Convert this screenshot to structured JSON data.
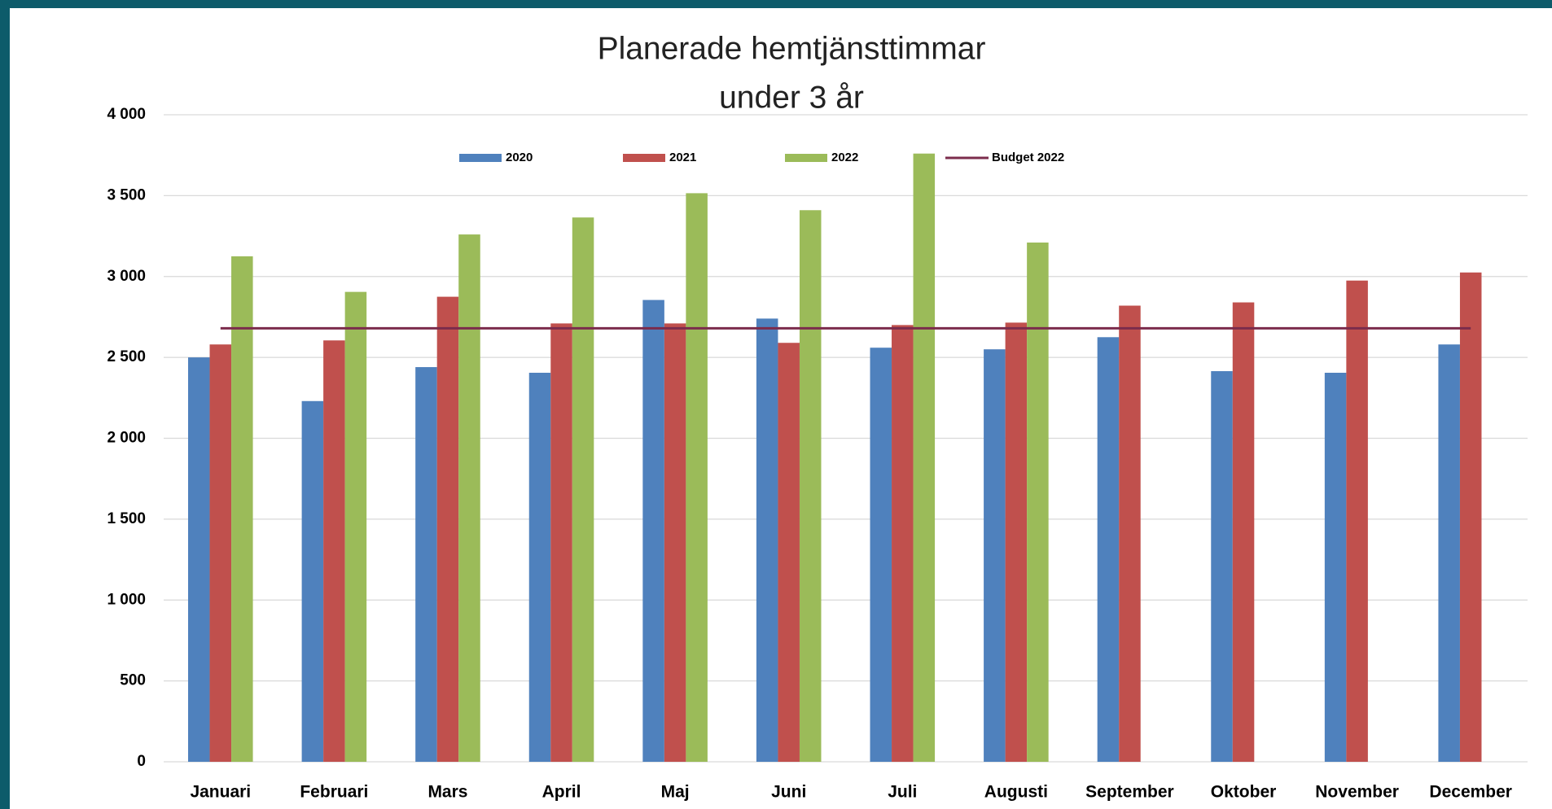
{
  "chart_data": {
    "type": "bar",
    "title": [
      "Planerade hemtjänsttimmar",
      "under 3 år"
    ],
    "categories": [
      "Januari",
      "Februari",
      "Mars",
      "April",
      "Maj",
      "Juni",
      "Juli",
      "Augusti",
      "September",
      "Oktober",
      "November",
      "December"
    ],
    "series": [
      {
        "name": "2020",
        "type": "bar",
        "color": "#4f81bd",
        "values": [
          2500,
          2230,
          2440,
          2405,
          2855,
          2740,
          2560,
          2550,
          2625,
          2415,
          2405,
          2580
        ]
      },
      {
        "name": "2021",
        "type": "bar",
        "color": "#c0504d",
        "values": [
          2580,
          2605,
          2875,
          2710,
          2710,
          2590,
          2700,
          2715,
          2820,
          2840,
          2975,
          3025
        ]
      },
      {
        "name": "2022",
        "type": "bar",
        "color": "#9bbb59",
        "values": [
          3125,
          2905,
          3260,
          3365,
          3515,
          3410,
          3760,
          3210,
          null,
          null,
          null,
          null
        ]
      },
      {
        "name": "Budget 2022",
        "type": "line",
        "color": "#7b2c4c",
        "values": [
          2680,
          2680,
          2680,
          2680,
          2680,
          2680,
          2680,
          2680,
          2680,
          2680,
          2680,
          2680
        ]
      }
    ],
    "ylim": [
      0,
      4000
    ],
    "yticks": [
      0,
      500,
      {
        "value": 1000,
        "label": "1 000"
      },
      {
        "value": 1500,
        "label": "1 500"
      },
      {
        "value": 2000,
        "label": "2 000"
      },
      {
        "value": 2500,
        "label": "2 500"
      },
      {
        "value": 3000,
        "label": "3 000"
      },
      {
        "value": 3500,
        "label": "3 500"
      },
      {
        "value": 4000,
        "label": "4 000"
      }
    ],
    "grid": true,
    "legend": "top"
  }
}
